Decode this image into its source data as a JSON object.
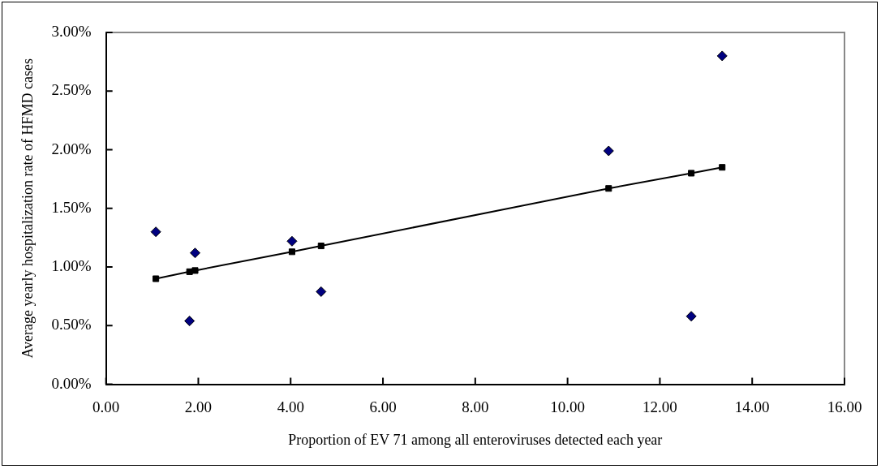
{
  "chart_data": {
    "type": "scatter",
    "xlabel": "Proportion of EV 71 among all enteroviruses detected each year",
    "ylabel": "Average yearly hospitalization rate of HFMD cases",
    "xlim": [
      0,
      16
    ],
    "xticks": [
      {
        "value": 0,
        "label": "0.00"
      },
      {
        "value": 2,
        "label": "2.00"
      },
      {
        "value": 4,
        "label": "4.00"
      },
      {
        "value": 6,
        "label": "6.00"
      },
      {
        "value": 8,
        "label": "8.00"
      },
      {
        "value": 10,
        "label": "10.00"
      },
      {
        "value": 12,
        "label": "12.00"
      },
      {
        "value": 14,
        "label": "14.00"
      },
      {
        "value": 16,
        "label": "16.00"
      }
    ],
    "ylim": [
      0,
      3
    ],
    "yticks": [
      {
        "value": 0,
        "label": "0.00%"
      },
      {
        "value": 0.5,
        "label": "0.50%"
      },
      {
        "value": 1,
        "label": "1.00%"
      },
      {
        "value": 1.5,
        "label": "1.50%"
      },
      {
        "value": 2,
        "label": "2.00%"
      },
      {
        "value": 2.5,
        "label": "2.50%"
      },
      {
        "value": 3,
        "label": "3.00%"
      }
    ],
    "series": [
      {
        "type": "scatter",
        "marker": "diamond",
        "color": "#000080",
        "x": [
          1.08,
          1.81,
          1.93,
          4.03,
          4.66,
          10.89,
          12.68,
          13.35
        ],
        "values": [
          1.3,
          0.54,
          1.12,
          1.22,
          0.79,
          1.99,
          0.58,
          2.8
        ]
      },
      {
        "type": "line",
        "marker": "square",
        "color": "#000000",
        "x": [
          1.08,
          1.81,
          1.93,
          4.03,
          4.66,
          10.89,
          12.68,
          13.35
        ],
        "values": [
          0.9,
          0.96,
          0.97,
          1.13,
          1.18,
          1.67,
          1.8,
          1.85
        ]
      }
    ]
  }
}
